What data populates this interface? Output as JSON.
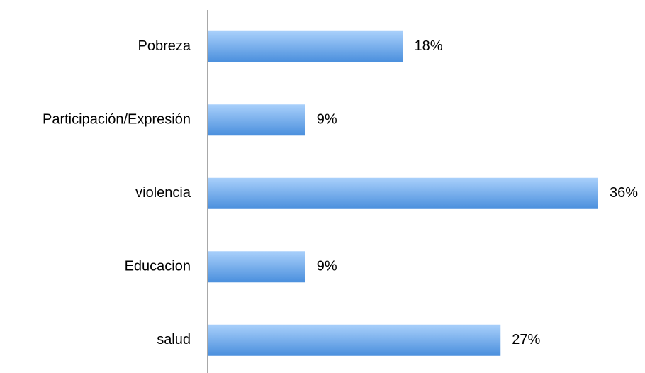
{
  "chart_data": {
    "type": "bar",
    "orientation": "horizontal",
    "categories": [
      "Pobreza",
      "Participación/Expresión",
      "violencia",
      "Educacion",
      "salud"
    ],
    "values": [
      18,
      9,
      36,
      9,
      27
    ],
    "value_labels": [
      "18%",
      "9%",
      "36%",
      "9%",
      "27%"
    ],
    "xlim": [
      0,
      36
    ],
    "grid": false,
    "legend": "none",
    "colors": {
      "bar_light": "#a9d0fb",
      "bar_dark": "#4a8fdd",
      "axis": "#8c8c8c"
    }
  }
}
